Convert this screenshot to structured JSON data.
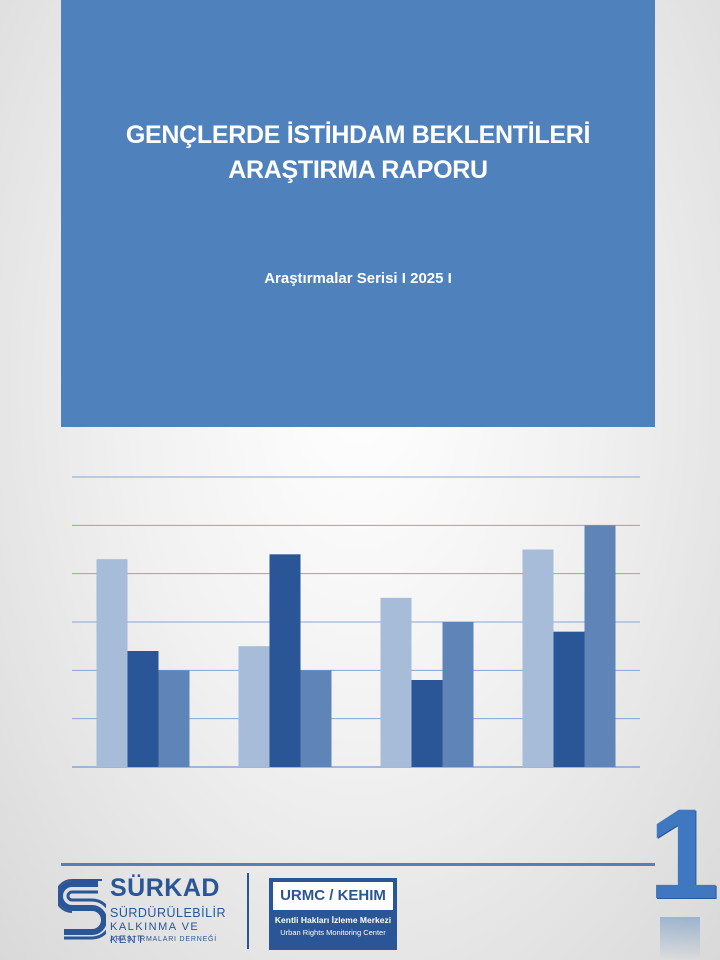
{
  "banner": {
    "title_line1": "GENÇLERDE İSTİHDAM BEKLENTİLERİ",
    "title_line2": "ARAŞTIRMA RAPORU",
    "subtitle": "Araştırmalar Serisi I 2025 I"
  },
  "chart_data": {
    "type": "bar",
    "categories": [
      "",
      "",
      "",
      ""
    ],
    "series": [
      {
        "values": [
          4.3,
          2.5,
          3.5,
          4.5
        ],
        "color": "#a7bcd9"
      },
      {
        "values": [
          2.4,
          4.4,
          1.8,
          2.8
        ],
        "color": "#2a5597"
      },
      {
        "values": [
          2.0,
          2.0,
          3.0,
          5.0
        ],
        "color": "#5f84b7"
      }
    ],
    "ylim": [
      0,
      6
    ],
    "grid": true,
    "legend": "none",
    "gridline_color": "#8aa5cf"
  },
  "volume_number": "1",
  "logos": {
    "surkad": {
      "name": "SÜRKAD",
      "line2": "SÜRDÜRÜLEBİLİR",
      "line3": "KALKINMA VE KENT",
      "line4": "ARAŞTIRMALARI DERNEĞİ"
    },
    "urmc": {
      "title": "URMC / KEHIM",
      "line1": "Kentli Hakları İzleme Merkezi",
      "line2": "Urban Rights Monitoring Center"
    }
  },
  "colors": {
    "banner": "#4f81bd",
    "logo_blue": "#2a5597"
  }
}
